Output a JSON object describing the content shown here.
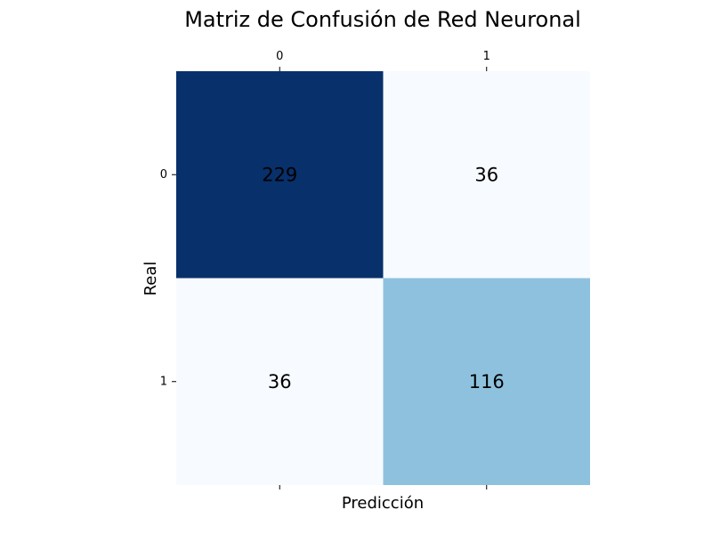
{
  "chart_data": {
    "type": "heatmap",
    "title": "Matriz de Confusión de Red Neuronal",
    "xlabel": "Predicción",
    "ylabel": "Real",
    "x_categories": [
      "0",
      "1"
    ],
    "y_categories": [
      "0",
      "1"
    ],
    "matrix": [
      [
        229,
        36
      ],
      [
        36,
        116
      ]
    ],
    "colormap": "Blues",
    "color_scale": {
      "min_color": "#f7fbff",
      "mid_color": "#8ec0dc",
      "max_color": "#08306b"
    },
    "x_tick_position": "top-and-bottom",
    "x_tick_labels_shown": "top",
    "colorbar": false,
    "grid": false
  }
}
